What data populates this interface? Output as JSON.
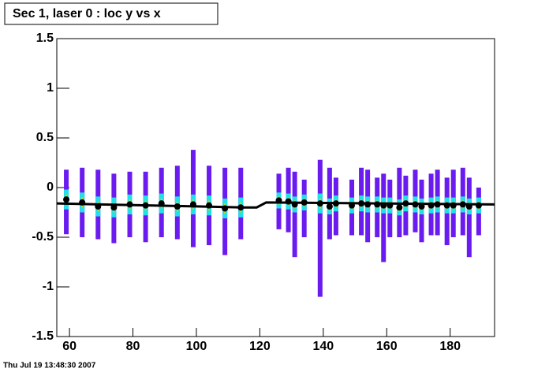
{
  "chart_data": {
    "type": "scatter",
    "title": "Sec 1, laser 0 : loc y vs x",
    "footer": "Thu Jul 19 13:48:30 2007",
    "xlim": [
      56,
      194
    ],
    "ylim": [
      -1.5,
      1.5
    ],
    "xticks": [
      60,
      80,
      100,
      120,
      140,
      160,
      180
    ],
    "yticks": [
      -1.5,
      -1,
      -0.5,
      0,
      0.5,
      1,
      1.5
    ],
    "columns": {
      "color": "#6a1bf0",
      "core_color": "#20e0e8",
      "x": [
        59,
        64,
        69,
        74,
        79,
        84,
        89,
        94,
        99,
        104,
        109,
        114,
        126,
        129,
        131,
        134,
        139,
        142,
        144,
        149,
        152,
        154,
        157,
        159,
        161,
        164,
        166,
        169,
        171,
        174,
        176,
        179,
        181,
        184,
        186,
        189
      ],
      "low": [
        -0.47,
        -0.5,
        -0.52,
        -0.56,
        -0.5,
        -0.55,
        -0.5,
        -0.52,
        -0.6,
        -0.58,
        -0.68,
        -0.52,
        -0.42,
        -0.45,
        -0.7,
        -0.5,
        -1.1,
        -0.52,
        -0.48,
        -0.48,
        -0.48,
        -0.55,
        -0.5,
        -0.75,
        -0.5,
        -0.5,
        -0.48,
        -0.45,
        -0.55,
        -0.48,
        -0.48,
        -0.58,
        -0.5,
        -0.48,
        -0.7,
        -0.48
      ],
      "high": [
        0.18,
        0.2,
        0.18,
        0.14,
        0.16,
        0.16,
        0.2,
        0.22,
        0.38,
        0.22,
        0.2,
        0.2,
        0.14,
        0.2,
        0.16,
        0.08,
        0.28,
        0.2,
        0.1,
        0.08,
        0.2,
        0.18,
        0.1,
        0.14,
        0.08,
        0.2,
        0.12,
        0.18,
        0.08,
        0.14,
        0.18,
        0.1,
        0.18,
        0.2,
        0.1,
        0
      ]
    },
    "profile": {
      "color": "#000000",
      "error_color": "#c8d820",
      "x": [
        59,
        64,
        69,
        74,
        79,
        84,
        89,
        94,
        99,
        104,
        109,
        114,
        126,
        129,
        131,
        134,
        139,
        142,
        144,
        149,
        152,
        154,
        157,
        159,
        161,
        164,
        166,
        169,
        171,
        174,
        176,
        179,
        181,
        184,
        186,
        189
      ],
      "values": [
        -0.12,
        -0.15,
        -0.19,
        -0.2,
        -0.17,
        -0.18,
        -0.16,
        -0.19,
        -0.17,
        -0.18,
        -0.21,
        -0.2,
        -0.13,
        -0.14,
        -0.17,
        -0.15,
        -0.16,
        -0.19,
        -0.16,
        -0.18,
        -0.16,
        -0.17,
        -0.17,
        -0.18,
        -0.18,
        -0.2,
        -0.16,
        -0.17,
        -0.19,
        -0.18,
        -0.17,
        -0.18,
        -0.18,
        -0.17,
        -0.19,
        -0.18
      ],
      "errors": [
        0.05,
        0.05,
        0.05,
        0.05,
        0.05,
        0.05,
        0.05,
        0.05,
        0.05,
        0.05,
        0.05,
        0.05,
        0.04,
        0.04,
        0.04,
        0.04,
        0.05,
        0.04,
        0.04,
        0.04,
        0.04,
        0.04,
        0.04,
        0.04,
        0.04,
        0.04,
        0.04,
        0.04,
        0.04,
        0.04,
        0.04,
        0.04,
        0.04,
        0.04,
        0.04,
        0.04
      ]
    },
    "fit": {
      "color": "#000000",
      "x": [
        56,
        115,
        119,
        122,
        194
      ],
      "values": [
        -0.16,
        -0.2,
        -0.2,
        -0.15,
        -0.17
      ]
    }
  }
}
